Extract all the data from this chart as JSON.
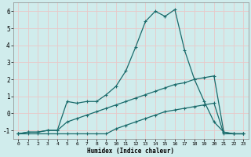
{
  "xlabel": "Humidex (Indice chaleur)",
  "bg_color": "#d0ecec",
  "grid_color": "#c0dada",
  "line_color": "#1a6b6b",
  "xlim": [
    -0.5,
    23.5
  ],
  "ylim": [
    -1.5,
    6.5
  ],
  "xticks": [
    0,
    1,
    2,
    3,
    4,
    5,
    6,
    7,
    8,
    9,
    10,
    11,
    12,
    13,
    14,
    15,
    16,
    17,
    18,
    19,
    20,
    21,
    22,
    23
  ],
  "yticks": [
    -1,
    0,
    1,
    2,
    3,
    4,
    5,
    6
  ],
  "line1_x": [
    0,
    1,
    2,
    3,
    4,
    5,
    6,
    7,
    8,
    9,
    10,
    11,
    12,
    13,
    14,
    15,
    16,
    17,
    18,
    19,
    20,
    21,
    22,
    23
  ],
  "line1_y": [
    -1.2,
    -1.1,
    -1.1,
    -1.0,
    -1.0,
    0.7,
    0.6,
    0.7,
    0.7,
    1.1,
    1.6,
    2.5,
    3.9,
    5.4,
    6.0,
    5.7,
    6.1,
    3.7,
    2.0,
    0.7,
    -0.5,
    -1.1,
    -1.2,
    -1.2
  ],
  "line2_x": [
    0,
    1,
    2,
    3,
    4,
    5,
    6,
    7,
    8,
    9,
    10,
    11,
    12,
    13,
    14,
    15,
    16,
    17,
    18,
    19,
    20,
    21,
    22,
    23
  ],
  "line2_y": [
    -1.2,
    -1.1,
    -1.1,
    -1.0,
    -1.0,
    -0.5,
    -0.3,
    -0.1,
    0.1,
    0.3,
    0.5,
    0.7,
    0.9,
    1.1,
    1.3,
    1.5,
    1.7,
    1.8,
    2.0,
    2.1,
    2.2,
    -1.1,
    -1.2,
    -1.2
  ],
  "line3_x": [
    0,
    1,
    2,
    3,
    4,
    5,
    6,
    7,
    8,
    9,
    10,
    11,
    12,
    13,
    14,
    15,
    16,
    17,
    18,
    19,
    20,
    21,
    22,
    23
  ],
  "line3_y": [
    -1.2,
    -1.2,
    -1.2,
    -1.2,
    -1.2,
    -1.2,
    -1.2,
    -1.2,
    -1.2,
    -1.2,
    -0.9,
    -0.7,
    -0.5,
    -0.3,
    -0.1,
    0.1,
    0.2,
    0.3,
    0.4,
    0.5,
    0.6,
    -1.2,
    -1.2,
    -1.2
  ]
}
